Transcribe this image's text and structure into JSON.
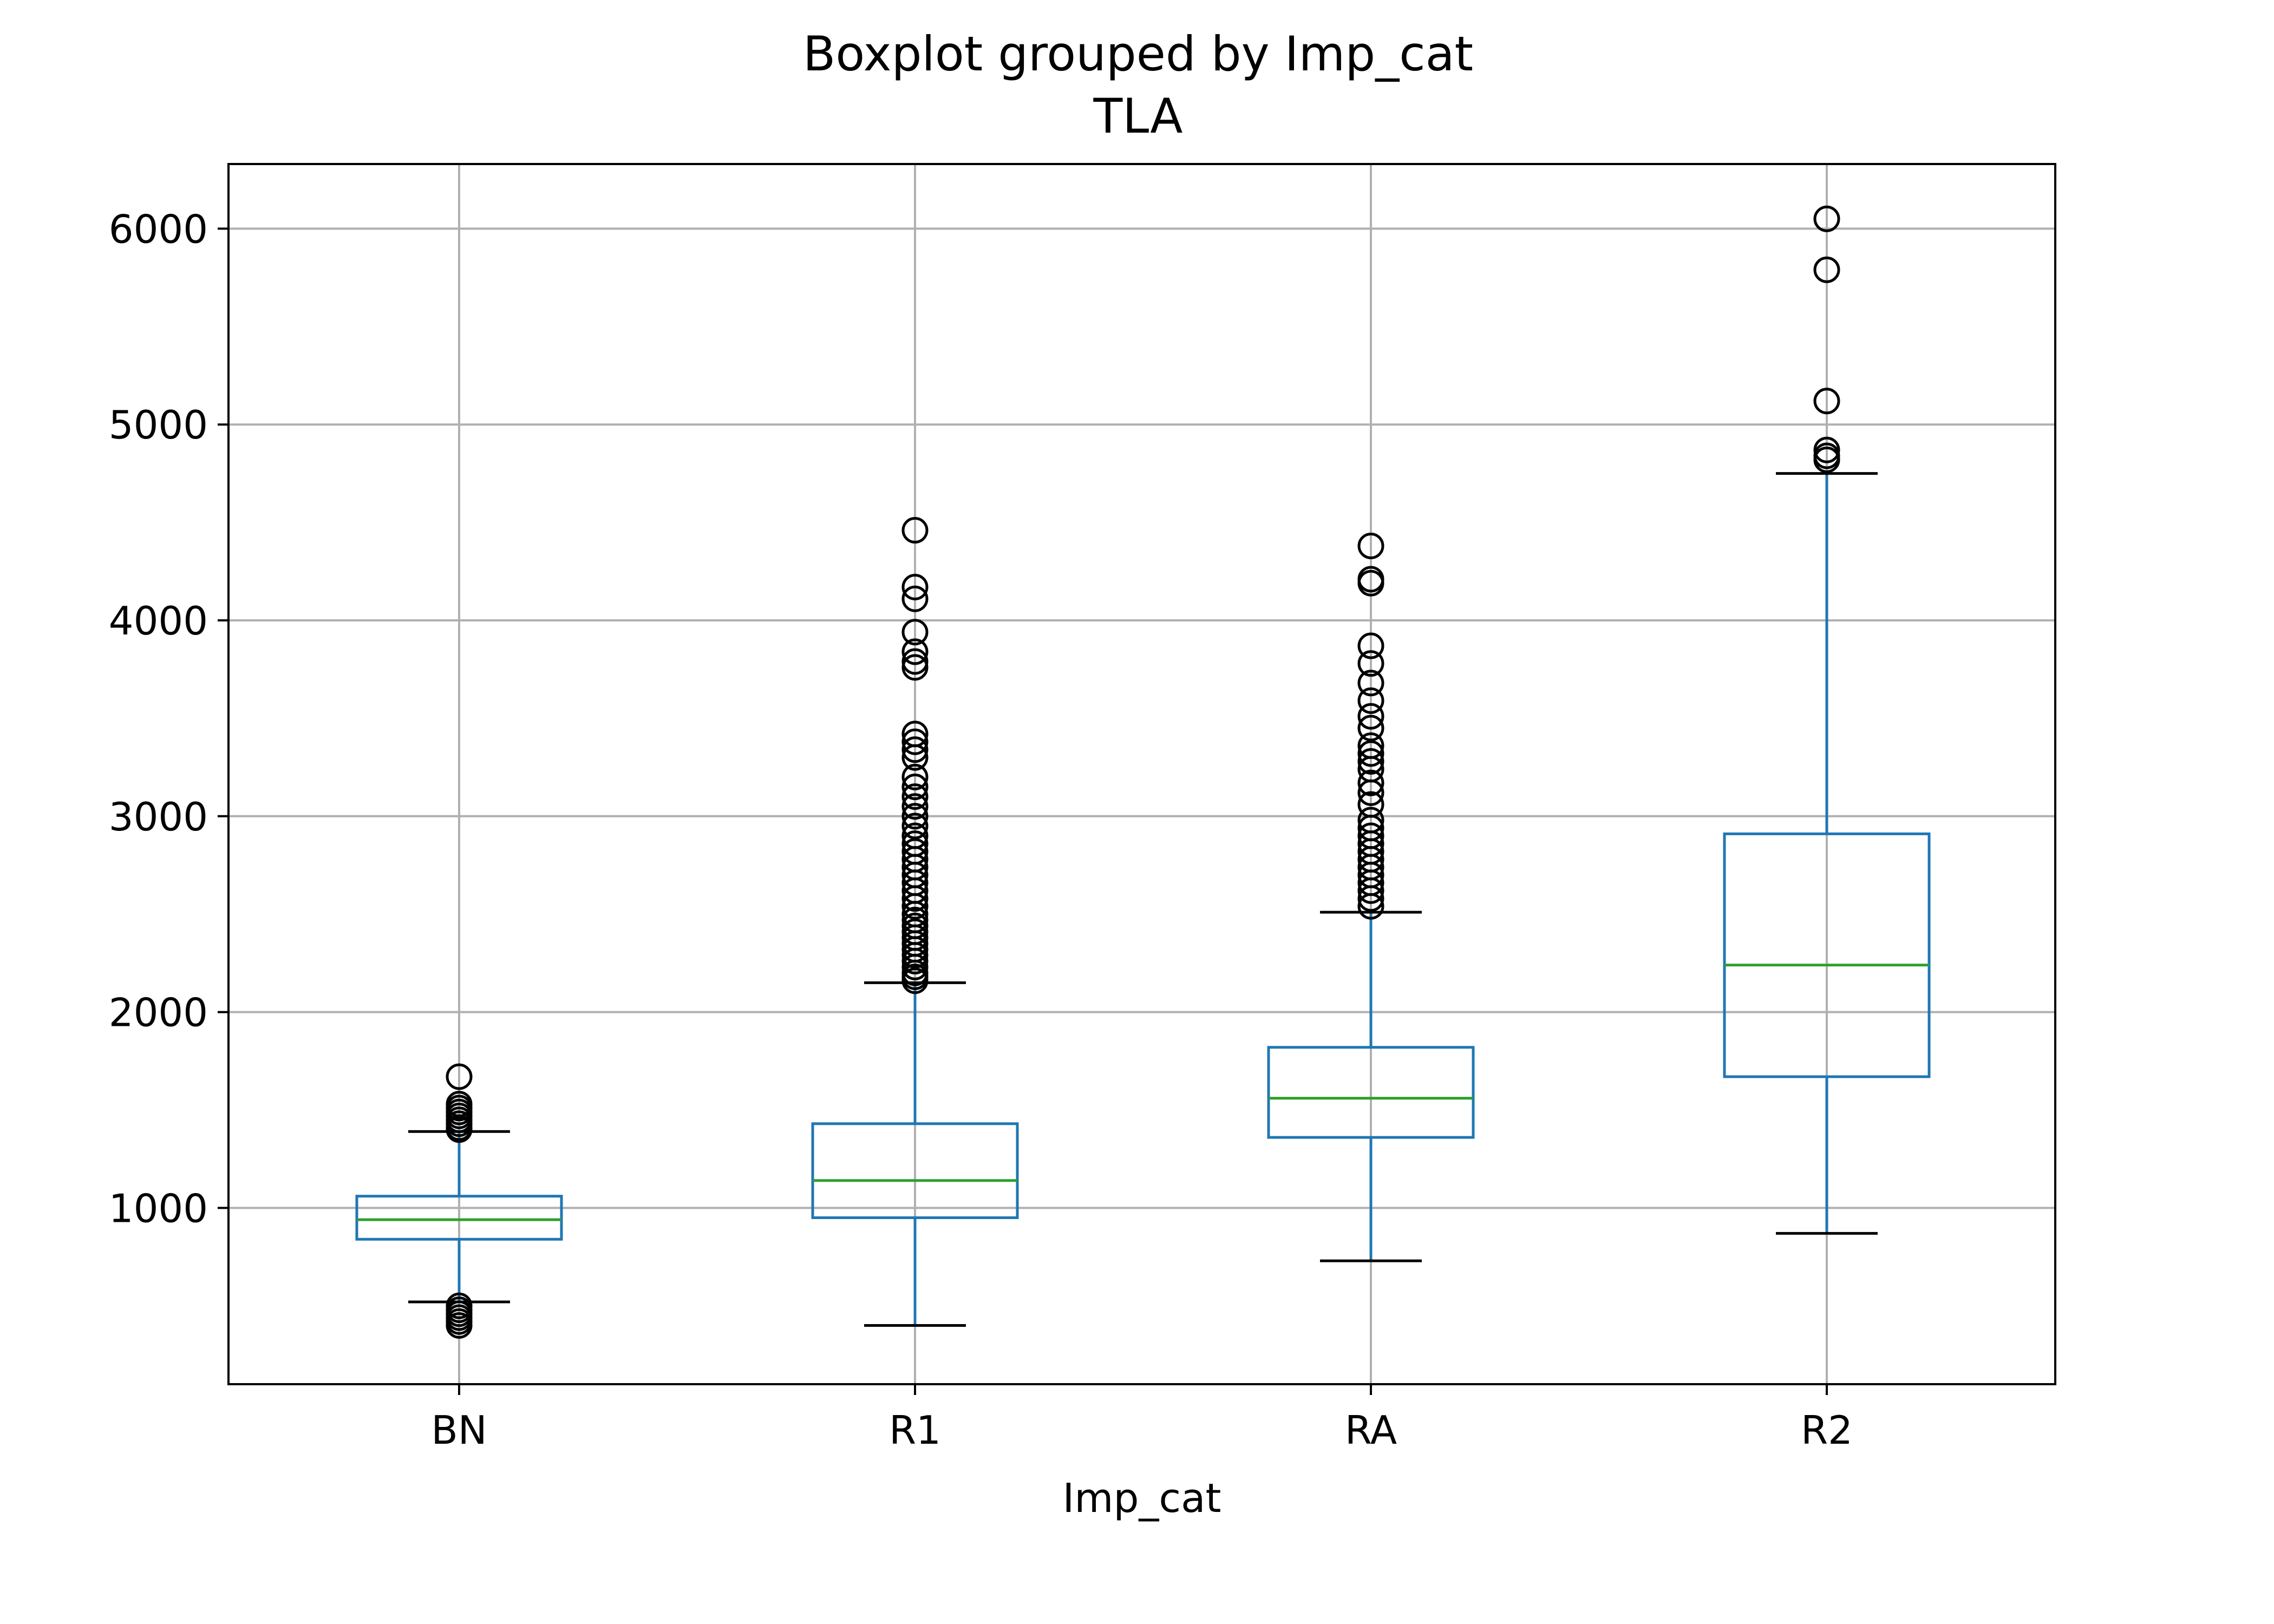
{
  "chart_data": {
    "type": "boxplot",
    "title": "Boxplot grouped by Imp_cat",
    "subtitle": "TLA",
    "xlabel": "Imp_cat",
    "ylabel": "",
    "ylim": [
      100,
      6330
    ],
    "yticks": [
      1000,
      2000,
      3000,
      4000,
      5000,
      6000
    ],
    "grid": true,
    "categories": [
      "BN",
      "R1",
      "RA",
      "R2"
    ],
    "boxes": [
      {
        "category": "BN",
        "whisker_low": 520,
        "q1": 840,
        "median": 940,
        "q3": 1060,
        "whisker_high": 1390,
        "outliers": [
          1670,
          1530,
          1510,
          1490,
          1470,
          1450,
          1430,
          1410,
          1400,
          500,
          480,
          460,
          440,
          420,
          400
        ]
      },
      {
        "category": "R1",
        "whisker_low": 400,
        "q1": 950,
        "median": 1140,
        "q3": 1430,
        "whisker_high": 2150,
        "outliers": [
          4460,
          4170,
          4110,
          3940,
          3840,
          3790,
          3760,
          3420,
          3380,
          3340,
          3300,
          3200,
          3150,
          3100,
          3050,
          3000,
          2950,
          2900,
          2860,
          2820,
          2780,
          2740,
          2700,
          2660,
          2620,
          2580,
          2540,
          2500,
          2470,
          2440,
          2410,
          2380,
          2350,
          2320,
          2290,
          2260,
          2230,
          2200,
          2180,
          2160
        ]
      },
      {
        "category": "RA",
        "whisker_low": 730,
        "q1": 1360,
        "median": 1560,
        "q3": 1820,
        "whisker_high": 2510,
        "outliers": [
          4380,
          4210,
          4190,
          3870,
          3780,
          3680,
          3590,
          3510,
          3450,
          3360,
          3320,
          3280,
          3240,
          3170,
          3120,
          3060,
          2980,
          2940,
          2900,
          2860,
          2820,
          2780,
          2740,
          2700,
          2660,
          2620,
          2580,
          2540
        ]
      },
      {
        "category": "R2",
        "whisker_low": 870,
        "q1": 1670,
        "median": 2240,
        "q3": 2910,
        "whisker_high": 4750,
        "outliers": [
          6050,
          5790,
          5120,
          4870,
          4840,
          4820
        ]
      }
    ],
    "colors": {
      "box": "#1f77b4",
      "median": "#2ca02c",
      "whisker_cap": "#000000",
      "outlier": "#000000",
      "grid": "#b0b0b0",
      "frame": "#000000"
    }
  }
}
